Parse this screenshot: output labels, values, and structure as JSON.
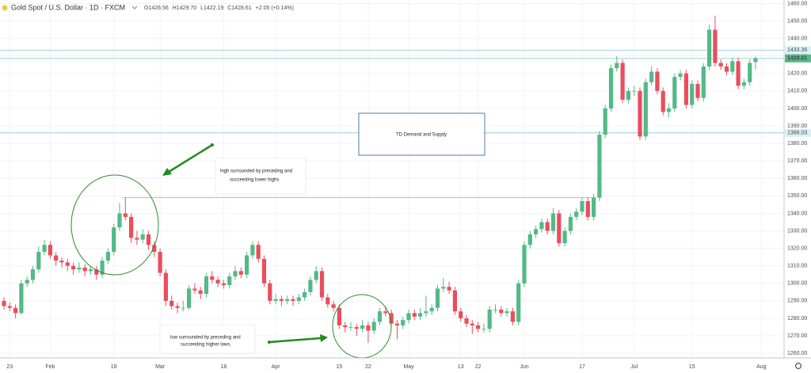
{
  "chart_data": {
    "type": "candlestick",
    "title": "Gold Spot / U.S. Dollar · 1D · FXCM",
    "legend": [
      "O1426.56",
      "H1429.70",
      "L1422.19",
      "C1428.61",
      "+2.05 (+0.14%)"
    ],
    "up_color": "#53b987",
    "down_color": "#eb4d5c",
    "ylim": [
      1256,
      1462
    ],
    "yticks": [
      {
        "value": 1260,
        "label": "1260.00"
      },
      {
        "value": 1270,
        "label": "1270.00"
      },
      {
        "value": 1280,
        "label": "1280.00"
      },
      {
        "value": 1290,
        "label": "1290.00"
      },
      {
        "value": 1300,
        "label": "1300.00"
      },
      {
        "value": 1310,
        "label": "1310.00"
      },
      {
        "value": 1320,
        "label": "1320.00"
      },
      {
        "value": 1330,
        "label": "1330.00"
      },
      {
        "value": 1340,
        "label": "1340.00"
      },
      {
        "value": 1350,
        "label": "1350.00"
      },
      {
        "value": 1360,
        "label": "1360.00"
      },
      {
        "value": 1370,
        "label": "1370.00"
      },
      {
        "value": 1380,
        "label": "1380.00"
      },
      {
        "value": 1390,
        "label": "1390.00"
      },
      {
        "value": 1400,
        "label": "1400.00"
      },
      {
        "value": 1410,
        "label": "1410.00"
      },
      {
        "value": 1420,
        "label": "1420.00"
      },
      {
        "value": 1430,
        "label": "1430.00"
      },
      {
        "value": 1440,
        "label": "1440.00"
      },
      {
        "value": 1450,
        "label": "1450.00"
      },
      {
        "value": 1460,
        "label": "1460.00"
      }
    ],
    "xticks": [
      {
        "value": 1,
        "label": "23"
      },
      {
        "value": 8,
        "label": "Feb"
      },
      {
        "value": 19,
        "label": "18"
      },
      {
        "value": 27,
        "label": "Mar"
      },
      {
        "value": 38,
        "label": "18"
      },
      {
        "value": 47,
        "label": "Apr"
      },
      {
        "value": 58,
        "label": "15"
      },
      {
        "value": 63,
        "label": "22"
      },
      {
        "value": 70,
        "label": "May"
      },
      {
        "value": 79,
        "label": "13"
      },
      {
        "value": 82,
        "label": "22"
      },
      {
        "value": 90,
        "label": "Jun"
      },
      {
        "value": 100,
        "label": "17"
      },
      {
        "value": 109,
        "label": "Jul"
      },
      {
        "value": 119,
        "label": "15"
      },
      {
        "value": 131,
        "label": "Aug"
      }
    ],
    "grid": true,
    "price_lines": [
      1433.36,
      1428.61,
      1386.03
    ],
    "level_line": 1349,
    "annotations": {
      "box": "TD Demand and Supply",
      "high": [
        "high surrounded by preceding and",
        "succeeding lower highs"
      ],
      "low": [
        "low surrounded by preceding and",
        "succeeding higher lows."
      ]
    },
    "ohlc": [
      [
        1290,
        1292,
        1285,
        1287
      ],
      [
        1287,
        1289,
        1284,
        1286
      ],
      [
        1286,
        1288,
        1280,
        1283
      ],
      [
        1283,
        1302,
        1282,
        1300
      ],
      [
        1300,
        1304,
        1298,
        1302
      ],
      [
        1302,
        1310,
        1300,
        1308
      ],
      [
        1308,
        1321,
        1306,
        1318
      ],
      [
        1318,
        1325,
        1316,
        1322
      ],
      [
        1322,
        1324,
        1314,
        1316
      ],
      [
        1316,
        1318,
        1310,
        1313
      ],
      [
        1313,
        1315,
        1309,
        1312
      ],
      [
        1312,
        1314,
        1307,
        1310
      ],
      [
        1310,
        1312,
        1305,
        1308
      ],
      [
        1308,
        1312,
        1306,
        1309
      ],
      [
        1309,
        1311,
        1304,
        1307
      ],
      [
        1307,
        1310,
        1305,
        1308
      ],
      [
        1308,
        1310,
        1302,
        1305
      ],
      [
        1305,
        1315,
        1303,
        1313
      ],
      [
        1313,
        1320,
        1311,
        1318
      ],
      [
        1318,
        1334,
        1316,
        1332
      ],
      [
        1332,
        1346,
        1330,
        1340
      ],
      [
        1340,
        1349,
        1336,
        1338
      ],
      [
        1338,
        1340,
        1323,
        1326
      ],
      [
        1326,
        1330,
        1322,
        1325
      ],
      [
        1325,
        1331,
        1323,
        1328
      ],
      [
        1328,
        1330,
        1319,
        1322
      ],
      [
        1322,
        1324,
        1315,
        1318
      ],
      [
        1318,
        1320,
        1304,
        1306
      ],
      [
        1306,
        1308,
        1287,
        1290
      ],
      [
        1290,
        1293,
        1285,
        1287
      ],
      [
        1287,
        1289,
        1283,
        1286
      ],
      [
        1286,
        1290,
        1284,
        1286
      ],
      [
        1286,
        1299,
        1285,
        1297
      ],
      [
        1297,
        1300,
        1294,
        1296
      ],
      [
        1296,
        1298,
        1291,
        1294
      ],
      [
        1294,
        1306,
        1292,
        1304
      ],
      [
        1304,
        1307,
        1300,
        1302
      ],
      [
        1302,
        1304,
        1298,
        1300
      ],
      [
        1300,
        1302,
        1297,
        1299
      ],
      [
        1299,
        1306,
        1297,
        1304
      ],
      [
        1304,
        1310,
        1302,
        1307
      ],
      [
        1307,
        1309,
        1303,
        1305
      ],
      [
        1305,
        1318,
        1303,
        1316
      ],
      [
        1316,
        1324,
        1314,
        1322
      ],
      [
        1322,
        1324,
        1312,
        1314
      ],
      [
        1314,
        1316,
        1298,
        1300
      ],
      [
        1300,
        1302,
        1288,
        1290
      ],
      [
        1290,
        1294,
        1288,
        1291
      ],
      [
        1291,
        1293,
        1287,
        1290
      ],
      [
        1290,
        1293,
        1288,
        1291
      ],
      [
        1291,
        1293,
        1287,
        1290
      ],
      [
        1290,
        1294,
        1288,
        1292
      ],
      [
        1292,
        1297,
        1290,
        1295
      ],
      [
        1295,
        1304,
        1293,
        1302
      ],
      [
        1302,
        1310,
        1300,
        1307
      ],
      [
        1307,
        1309,
        1290,
        1292
      ],
      [
        1292,
        1294,
        1286,
        1288
      ],
      [
        1288,
        1290,
        1284,
        1286
      ],
      [
        1286,
        1288,
        1274,
        1276
      ],
      [
        1276,
        1278,
        1272,
        1275
      ],
      [
        1275,
        1278,
        1273,
        1275
      ],
      [
        1275,
        1277,
        1270,
        1274
      ],
      [
        1274,
        1279,
        1272,
        1276
      ],
      [
        1276,
        1278,
        1266,
        1273
      ],
      [
        1273,
        1280,
        1271,
        1278
      ],
      [
        1278,
        1286,
        1276,
        1284
      ],
      [
        1284,
        1287,
        1281,
        1283
      ],
      [
        1283,
        1285,
        1275,
        1277
      ],
      [
        1277,
        1279,
        1268,
        1276
      ],
      [
        1276,
        1281,
        1274,
        1279
      ],
      [
        1279,
        1285,
        1277,
        1283
      ],
      [
        1283,
        1285,
        1279,
        1281
      ],
      [
        1281,
        1286,
        1279,
        1283
      ],
      [
        1283,
        1293,
        1281,
        1284
      ],
      [
        1284,
        1288,
        1282,
        1286
      ],
      [
        1286,
        1299,
        1284,
        1297
      ],
      [
        1297,
        1303,
        1295,
        1298
      ],
      [
        1298,
        1301,
        1294,
        1296
      ],
      [
        1296,
        1298,
        1282,
        1284
      ],
      [
        1284,
        1286,
        1278,
        1280
      ],
      [
        1280,
        1282,
        1275,
        1277
      ],
      [
        1277,
        1279,
        1271,
        1276
      ],
      [
        1276,
        1278,
        1272,
        1274
      ],
      [
        1274,
        1277,
        1272,
        1274
      ],
      [
        1274,
        1287,
        1272,
        1285
      ],
      [
        1285,
        1288,
        1283,
        1285
      ],
      [
        1285,
        1287,
        1281,
        1283
      ],
      [
        1283,
        1286,
        1281,
        1284
      ],
      [
        1284,
        1286,
        1276,
        1278
      ],
      [
        1278,
        1302,
        1276,
        1300
      ],
      [
        1300,
        1324,
        1298,
        1322
      ],
      [
        1322,
        1330,
        1320,
        1328
      ],
      [
        1328,
        1333,
        1326,
        1331
      ],
      [
        1331,
        1337,
        1329,
        1335
      ],
      [
        1335,
        1337,
        1328,
        1330
      ],
      [
        1330,
        1343,
        1328,
        1340
      ],
      [
        1340,
        1342,
        1321,
        1323
      ],
      [
        1323,
        1332,
        1321,
        1330
      ],
      [
        1330,
        1340,
        1328,
        1338
      ],
      [
        1338,
        1343,
        1336,
        1341
      ],
      [
        1341,
        1349,
        1339,
        1347
      ],
      [
        1347,
        1349,
        1336,
        1338
      ],
      [
        1338,
        1351,
        1336,
        1349
      ],
      [
        1349,
        1387,
        1347,
        1385
      ],
      [
        1385,
        1402,
        1383,
        1400
      ],
      [
        1400,
        1425,
        1398,
        1423
      ],
      [
        1423,
        1430,
        1421,
        1426
      ],
      [
        1426,
        1428,
        1403,
        1405
      ],
      [
        1405,
        1412,
        1403,
        1410
      ],
      [
        1410,
        1413,
        1407,
        1410
      ],
      [
        1410,
        1412,
        1382,
        1384
      ],
      [
        1384,
        1417,
        1382,
        1415
      ],
      [
        1415,
        1424,
        1413,
        1421
      ],
      [
        1421,
        1423,
        1408,
        1410
      ],
      [
        1410,
        1412,
        1396,
        1398
      ],
      [
        1398,
        1403,
        1395,
        1400
      ],
      [
        1400,
        1420,
        1398,
        1418
      ],
      [
        1418,
        1422,
        1416,
        1420
      ],
      [
        1420,
        1422,
        1400,
        1402
      ],
      [
        1402,
        1416,
        1400,
        1414
      ],
      [
        1414,
        1416,
        1404,
        1406
      ],
      [
        1406,
        1426,
        1404,
        1424
      ],
      [
        1424,
        1448,
        1422,
        1445
      ],
      [
        1445,
        1453,
        1424,
        1426
      ],
      [
        1426,
        1428,
        1422,
        1424
      ],
      [
        1424,
        1426,
        1419,
        1421
      ],
      [
        1421,
        1429,
        1419,
        1427
      ],
      [
        1427,
        1429,
        1411,
        1413
      ],
      [
        1413,
        1417,
        1411,
        1415
      ],
      [
        1415,
        1428,
        1413,
        1426
      ],
      [
        1426.56,
        1429.7,
        1422.19,
        1428.61
      ]
    ]
  }
}
